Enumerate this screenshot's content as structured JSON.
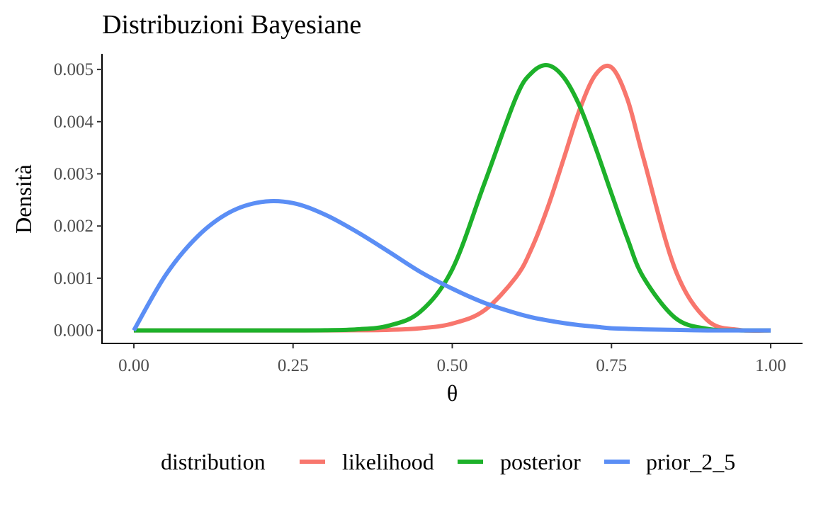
{
  "chart_data": {
    "type": "line",
    "title": "Distribuzioni Bayesiane",
    "xlabel": "θ",
    "ylabel": "Densità",
    "xlim": [
      -0.05,
      1.05
    ],
    "ylim": [
      -0.00025,
      0.0053
    ],
    "x_ticks": [
      0,
      0.25,
      0.5,
      0.75,
      1
    ],
    "x_tick_labels": [
      "0.00",
      "0.25",
      "0.50",
      "0.75",
      "1.00"
    ],
    "y_ticks": [
      0,
      0.001,
      0.002,
      0.003,
      0.004,
      0.005
    ],
    "y_tick_labels": [
      "0.000",
      "0.001",
      "0.002",
      "0.003",
      "0.004",
      "0.005"
    ],
    "grid": false,
    "legend": {
      "title": "distribution",
      "placement": "bottom"
    },
    "x": [
      0,
      0.05,
      0.1,
      0.15,
      0.2,
      0.25,
      0.3,
      0.35,
      0.4,
      0.45,
      0.5,
      0.55,
      0.6,
      0.625,
      0.65,
      0.675,
      0.7,
      0.725,
      0.75,
      0.775,
      0.8,
      0.85,
      0.9,
      0.95,
      1
    ],
    "series": [
      {
        "name": "likelihood",
        "color": "#F8766D",
        "values": [
          0,
          0,
          0,
          0,
          0,
          0,
          0,
          2e-06,
          1e-05,
          4e-05,
          0.00013,
          0.00038,
          0.00102,
          0.00158,
          0.00236,
          0.00329,
          0.00423,
          0.0049,
          0.00504,
          0.00443,
          0.00331,
          0.00117,
          0.0002,
          1e-05,
          0
        ]
      },
      {
        "name": "posterior",
        "color": "#1DB12A",
        "values": [
          0,
          0,
          0,
          0,
          0,
          0,
          3e-06,
          2e-05,
          9e-05,
          0.00036,
          0.00117,
          0.0028,
          0.00446,
          0.00494,
          0.00508,
          0.00485,
          0.0043,
          0.0035,
          0.00262,
          0.00176,
          0.00102,
          0.00024,
          3e-05,
          1e-06,
          0
        ]
      },
      {
        "name": "prior_2_5",
        "color": "#5B8EF5",
        "values": [
          0,
          0.00106,
          0.0018,
          0.00226,
          0.00246,
          0.00244,
          0.00222,
          0.00189,
          0.00151,
          0.00112,
          0.0008,
          0.00053,
          0.00033,
          0.00025,
          0.00019,
          0.00014,
          0.0001,
          7e-05,
          4e-05,
          3e-05,
          2e-05,
          1e-05,
          0,
          0,
          0
        ]
      }
    ]
  }
}
